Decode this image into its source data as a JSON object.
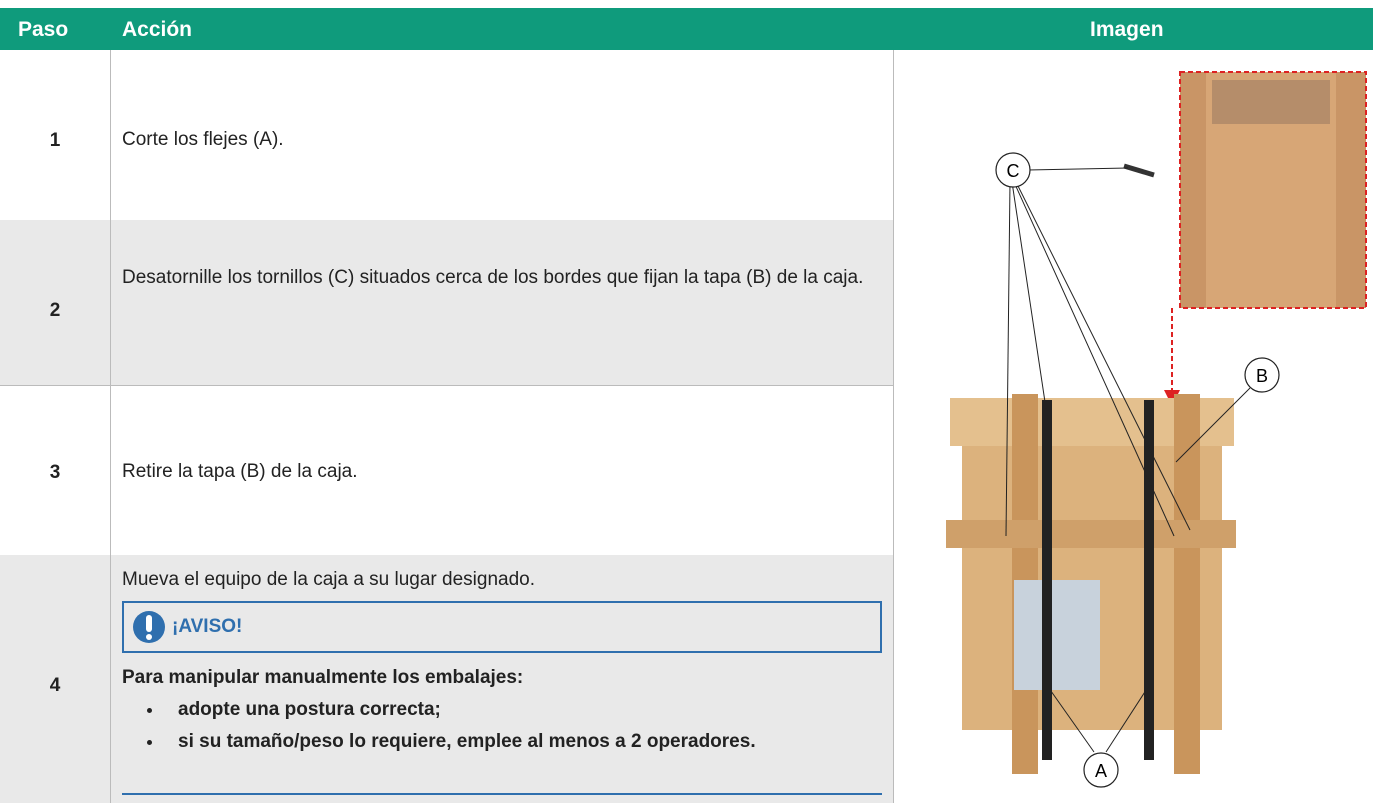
{
  "header": {
    "step": "Paso",
    "action": "Acción",
    "image": "Imagen"
  },
  "rows": [
    {
      "step": "1",
      "action": "Corte los flejes (A)."
    },
    {
      "step": "2",
      "action": "Desatornille los tornillos (C) situados cerca de los bordes que fijan la tapa (B) de la caja."
    },
    {
      "step": "3",
      "action": "Retire la tapa (B) de la caja."
    },
    {
      "step": "4",
      "action": "Mueva el equipo de la caja a su lugar designado.",
      "notice": {
        "title": "¡AVISO!",
        "intro": "Para manipular manualmente los embalajes:",
        "items": [
          "adopte una postura correcta;",
          "si su tamaño/peso lo requiere, emplee al menos a 2 operadores."
        ]
      }
    }
  ],
  "image": {
    "callouts": [
      "C",
      "B",
      "A"
    ]
  }
}
